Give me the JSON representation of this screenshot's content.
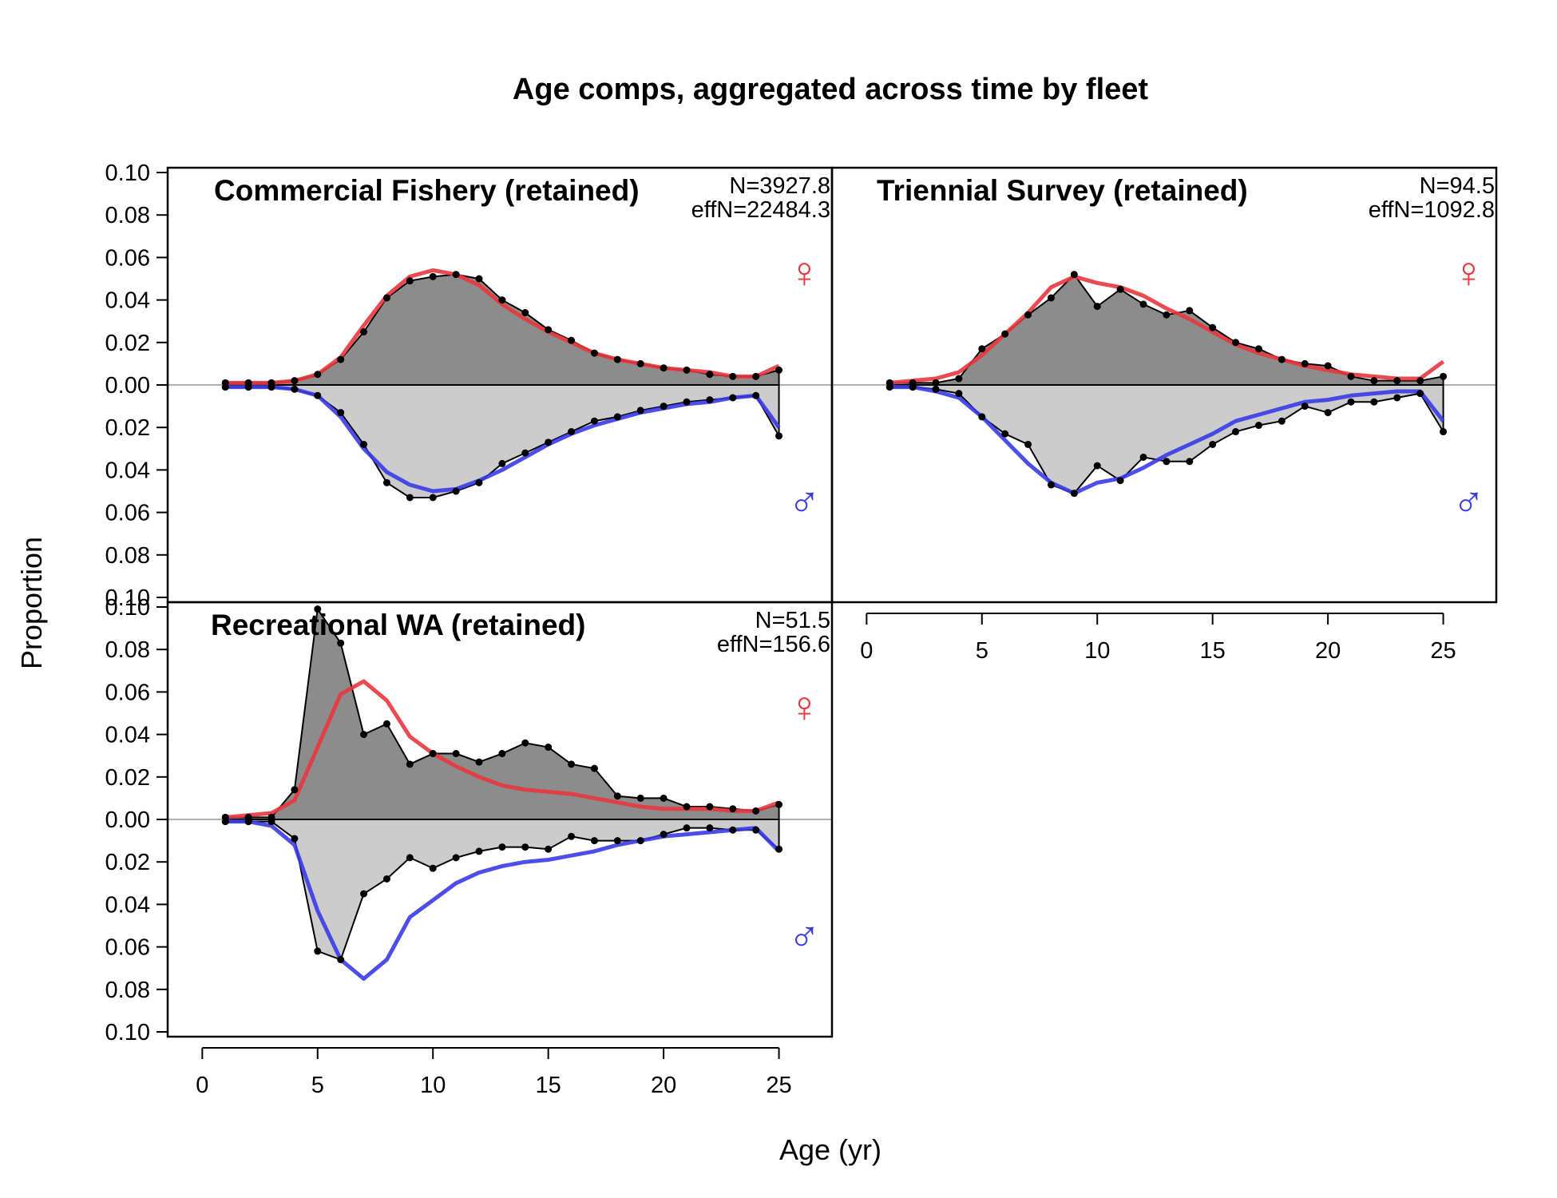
{
  "figure": {
    "title": "Age comps, aggregated across time by fleet",
    "ylabel": "Proportion",
    "xlabel": "Age (yr)",
    "female_symbol": "♀",
    "male_symbol": "♂"
  },
  "colors": {
    "female_expected": "#e8363d",
    "male_expected": "#3a3ae8",
    "female_fill": "#8c8c8c",
    "male_fill": "#cccccc",
    "observed": "#000000",
    "zero_line": "#b0b0b0"
  },
  "chart_data": [
    {
      "type": "area",
      "title": "Commercial Fishery (retained)",
      "n_label": "N=3927.8",
      "effn_label": "effN=22484.3",
      "x": [
        1,
        2,
        3,
        4,
        5,
        6,
        7,
        8,
        9,
        10,
        11,
        12,
        13,
        14,
        15,
        16,
        17,
        18,
        19,
        20,
        21,
        22,
        23,
        24,
        25
      ],
      "ylim": [
        -0.1,
        0.1
      ],
      "y_ticks": [
        "0.10",
        "0.08",
        "0.06",
        "0.04",
        "0.02",
        "0.00",
        "0.02",
        "0.04",
        "0.06",
        "0.08",
        "0.10"
      ],
      "x_ticks": [
        "0",
        "5",
        "10",
        "15",
        "20",
        "25"
      ],
      "show_x_axis": false,
      "series": [
        {
          "name": "female observed",
          "values": [
            0.001,
            0.001,
            0.001,
            0.002,
            0.005,
            0.012,
            0.025,
            0.041,
            0.049,
            0.051,
            0.052,
            0.05,
            0.04,
            0.034,
            0.026,
            0.021,
            0.015,
            0.012,
            0.01,
            0.008,
            0.007,
            0.005,
            0.004,
            0.004,
            0.007
          ]
        },
        {
          "name": "female expected",
          "values": [
            0.001,
            0.001,
            0.001,
            0.002,
            0.005,
            0.013,
            0.028,
            0.042,
            0.051,
            0.054,
            0.052,
            0.047,
            0.038,
            0.031,
            0.025,
            0.02,
            0.015,
            0.012,
            0.01,
            0.008,
            0.007,
            0.006,
            0.004,
            0.004,
            0.009
          ]
        },
        {
          "name": "male observed",
          "values": [
            0.001,
            0.001,
            0.001,
            0.002,
            0.005,
            0.013,
            0.028,
            0.046,
            0.053,
            0.053,
            0.05,
            0.046,
            0.037,
            0.032,
            0.027,
            0.022,
            0.017,
            0.015,
            0.012,
            0.01,
            0.008,
            0.007,
            0.006,
            0.005,
            0.024
          ]
        },
        {
          "name": "male expected",
          "values": [
            0.001,
            0.001,
            0.001,
            0.002,
            0.005,
            0.015,
            0.03,
            0.041,
            0.047,
            0.05,
            0.049,
            0.045,
            0.04,
            0.034,
            0.028,
            0.023,
            0.019,
            0.016,
            0.013,
            0.011,
            0.009,
            0.008,
            0.006,
            0.005,
            0.02
          ]
        }
      ]
    },
    {
      "type": "area",
      "title": "Triennial Survey (retained)",
      "n_label": "N=94.5",
      "effn_label": "effN=1092.8",
      "x": [
        1,
        2,
        3,
        4,
        5,
        6,
        7,
        8,
        9,
        10,
        11,
        12,
        13,
        14,
        15,
        16,
        17,
        18,
        19,
        20,
        21,
        22,
        23,
        24,
        25
      ],
      "ylim": [
        -0.1,
        0.1
      ],
      "y_ticks": [],
      "x_ticks": [
        "0",
        "5",
        "10",
        "15",
        "20",
        "25"
      ],
      "show_x_axis": true,
      "series": [
        {
          "name": "female observed",
          "values": [
            0.001,
            0.001,
            0.001,
            0.003,
            0.017,
            0.024,
            0.033,
            0.041,
            0.052,
            0.037,
            0.045,
            0.038,
            0.033,
            0.035,
            0.027,
            0.02,
            0.017,
            0.012,
            0.01,
            0.009,
            0.004,
            0.002,
            0.002,
            0.002,
            0.004
          ]
        },
        {
          "name": "female expected",
          "values": [
            0.001,
            0.002,
            0.003,
            0.006,
            0.014,
            0.024,
            0.034,
            0.046,
            0.051,
            0.048,
            0.046,
            0.042,
            0.036,
            0.031,
            0.025,
            0.019,
            0.015,
            0.012,
            0.009,
            0.007,
            0.005,
            0.004,
            0.003,
            0.003,
            0.011
          ]
        },
        {
          "name": "male observed",
          "values": [
            0.001,
            0.001,
            0.002,
            0.004,
            0.015,
            0.023,
            0.028,
            0.047,
            0.051,
            0.038,
            0.045,
            0.034,
            0.036,
            0.036,
            0.028,
            0.022,
            0.019,
            0.017,
            0.01,
            0.013,
            0.008,
            0.008,
            0.006,
            0.004,
            0.022
          ]
        },
        {
          "name": "male expected",
          "values": [
            0.001,
            0.001,
            0.003,
            0.006,
            0.015,
            0.026,
            0.037,
            0.046,
            0.051,
            0.046,
            0.044,
            0.039,
            0.033,
            0.028,
            0.023,
            0.017,
            0.014,
            0.011,
            0.008,
            0.007,
            0.005,
            0.004,
            0.003,
            0.003,
            0.017
          ]
        }
      ]
    },
    {
      "type": "area",
      "title": "Recreational WA (retained)",
      "n_label": "N=51.5",
      "effn_label": "effN=156.6",
      "x": [
        1,
        2,
        3,
        4,
        5,
        6,
        7,
        8,
        9,
        10,
        11,
        12,
        13,
        14,
        15,
        16,
        17,
        18,
        19,
        20,
        21,
        22,
        23,
        24,
        25
      ],
      "ylim": [
        -0.1,
        0.1
      ],
      "y_ticks": [
        "0.10",
        "0.08",
        "0.06",
        "0.04",
        "0.02",
        "0.00",
        "0.02",
        "0.04",
        "0.06",
        "0.08",
        "0.10"
      ],
      "x_ticks": [
        "0",
        "5",
        "10",
        "15",
        "20",
        "25"
      ],
      "show_x_axis": true,
      "series": [
        {
          "name": "female observed",
          "values": [
            0.001,
            0.001,
            0.001,
            0.014,
            0.099,
            0.083,
            0.04,
            0.045,
            0.026,
            0.031,
            0.031,
            0.027,
            0.031,
            0.036,
            0.034,
            0.026,
            0.024,
            0.011,
            0.01,
            0.01,
            0.006,
            0.006,
            0.005,
            0.004,
            0.007
          ]
        },
        {
          "name": "female expected",
          "values": [
            0.001,
            0.002,
            0.003,
            0.009,
            0.034,
            0.059,
            0.065,
            0.056,
            0.039,
            0.031,
            0.025,
            0.02,
            0.016,
            0.014,
            0.013,
            0.012,
            0.01,
            0.008,
            0.006,
            0.005,
            0.005,
            0.005,
            0.004,
            0.004,
            0.008
          ]
        },
        {
          "name": "male observed",
          "values": [
            0.001,
            0.001,
            0.001,
            0.009,
            0.062,
            0.066,
            0.035,
            0.028,
            0.018,
            0.023,
            0.018,
            0.015,
            0.013,
            0.013,
            0.014,
            0.008,
            0.01,
            0.01,
            0.01,
            0.007,
            0.004,
            0.004,
            0.005,
            0.005,
            0.014
          ]
        },
        {
          "name": "male expected",
          "values": [
            0.001,
            0.001,
            0.003,
            0.012,
            0.043,
            0.066,
            0.075,
            0.066,
            0.046,
            0.038,
            0.03,
            0.025,
            0.022,
            0.02,
            0.019,
            0.017,
            0.015,
            0.012,
            0.01,
            0.008,
            0.007,
            0.006,
            0.005,
            0.004,
            0.015
          ]
        }
      ]
    }
  ]
}
